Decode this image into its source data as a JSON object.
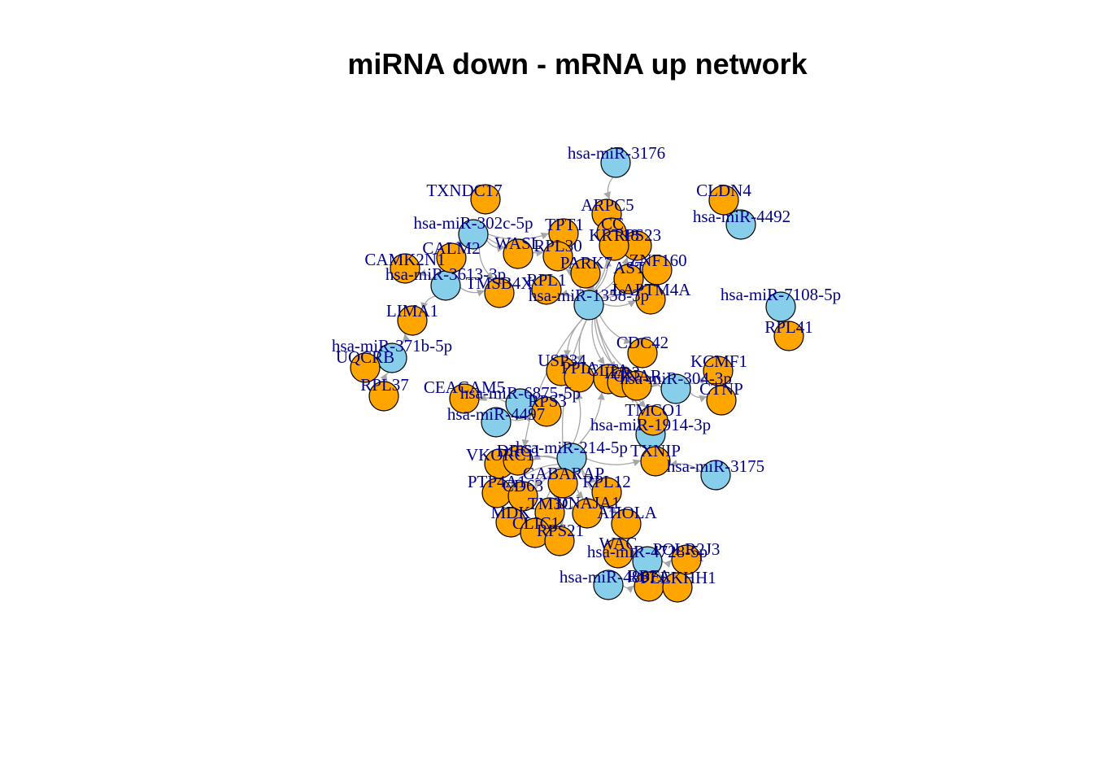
{
  "title": "miRNA down - mRNA up network",
  "colors": {
    "mirna_fill": "#87CEEB",
    "mrna_fill": "#FFA500",
    "node_stroke": "#000000",
    "edge": "#A6A6A6",
    "label": "#00008B"
  },
  "nodes": [
    {
      "id": "m3176",
      "label": "hsa-miR-3176",
      "type": "miRNA"
    },
    {
      "id": "m4492",
      "label": "hsa-miR-4492",
      "type": "miRNA"
    },
    {
      "id": "m302c",
      "label": "hsa-miR-302c-5p",
      "type": "miRNA"
    },
    {
      "id": "m3613",
      "label": "hsa-miR-3613-3p",
      "type": "miRNA"
    },
    {
      "id": "m1358",
      "label": "hsa-miR-1358-3p",
      "type": "miRNA"
    },
    {
      "id": "m7108",
      "label": "hsa-miR-7108-5p",
      "type": "miRNA"
    },
    {
      "id": "m371b",
      "label": "hsa-miR-371b-5p",
      "type": "miRNA"
    },
    {
      "id": "m304",
      "label": "hsa-miR-304-3p",
      "type": "miRNA"
    },
    {
      "id": "mB1",
      "label": "hsa-miR-6875-5p",
      "type": "miRNA"
    },
    {
      "id": "mB2",
      "label": "hsa-miR-4497",
      "type": "miRNA"
    },
    {
      "id": "m1914",
      "label": "hsa-miR-1914-3p",
      "type": "miRNA"
    },
    {
      "id": "m214",
      "label": "hsa-miR-214-5p",
      "type": "miRNA"
    },
    {
      "id": "m3175",
      "label": "hsa-miR-3175",
      "type": "miRNA"
    },
    {
      "id": "m4728",
      "label": "hsa-miR-4728-5p",
      "type": "miRNA"
    },
    {
      "id": "mBot",
      "label": "hsa-miR-4867",
      "type": "miRNA"
    },
    {
      "id": "g1",
      "label": "TXNDC17",
      "type": "mRNA"
    },
    {
      "id": "g2",
      "label": "CLDN4",
      "type": "mRNA"
    },
    {
      "id": "g3",
      "label": "ARPC5",
      "type": "mRNA"
    },
    {
      "id": "g4",
      "label": "TPT1",
      "type": "mRNA"
    },
    {
      "id": "g5",
      "label": "CC",
      "type": "mRNA"
    },
    {
      "id": "g6",
      "label": "RPS23",
      "type": "mRNA"
    },
    {
      "id": "g7",
      "label": "KRT18",
      "type": "mRNA"
    },
    {
      "id": "g8",
      "label": "CALM2",
      "type": "mRNA"
    },
    {
      "id": "g9",
      "label": "WASL",
      "type": "mRNA"
    },
    {
      "id": "g10",
      "label": "RPL30",
      "type": "mRNA"
    },
    {
      "id": "g11",
      "label": "CAMK2N1",
      "type": "mRNA"
    },
    {
      "id": "g12",
      "label": "PARK7",
      "type": "mRNA"
    },
    {
      "id": "g13",
      "label": "ZNF160",
      "type": "mRNA"
    },
    {
      "id": "g14",
      "label": "AST",
      "type": "mRNA"
    },
    {
      "id": "g15",
      "label": "TMSB4X",
      "type": "mRNA"
    },
    {
      "id": "g16",
      "label": "RPL1",
      "type": "mRNA"
    },
    {
      "id": "g17",
      "label": "LAPTM4A",
      "type": "mRNA"
    },
    {
      "id": "g18",
      "label": "LIMA1",
      "type": "mRNA"
    },
    {
      "id": "g19",
      "label": "RPL41",
      "type": "mRNA"
    },
    {
      "id": "g20",
      "label": "UQCRB",
      "type": "mRNA"
    },
    {
      "id": "g21",
      "label": "RPL37",
      "type": "mRNA"
    },
    {
      "id": "g22",
      "label": "CDC42",
      "type": "mRNA"
    },
    {
      "id": "g23",
      "label": "KCMF1",
      "type": "mRNA"
    },
    {
      "id": "g24",
      "label": "CTNP",
      "type": "mRNA"
    },
    {
      "id": "g25",
      "label": "USP34",
      "type": "mRNA"
    },
    {
      "id": "g26",
      "label": "PPIA",
      "type": "mRNA"
    },
    {
      "id": "g27",
      "label": "CLTA",
      "type": "mRNA"
    },
    {
      "id": "g28",
      "label": "IER3",
      "type": "mRNA"
    },
    {
      "id": "g29",
      "label": "GNAR",
      "type": "mRNA"
    },
    {
      "id": "g30",
      "label": "CEACAM5",
      "type": "mRNA"
    },
    {
      "id": "g31",
      "label": "TMCO1",
      "type": "mRNA"
    },
    {
      "id": "g32",
      "label": "RPS3",
      "type": "mRNA"
    },
    {
      "id": "g33",
      "label": "TXNIP",
      "type": "mRNA"
    },
    {
      "id": "g34",
      "label": "VKORC1",
      "type": "mRNA"
    },
    {
      "id": "g35",
      "label": "DRG1",
      "type": "mRNA"
    },
    {
      "id": "g36",
      "label": "GABARAP",
      "type": "mRNA"
    },
    {
      "id": "g37",
      "label": "PTP4A1",
      "type": "mRNA"
    },
    {
      "id": "g38",
      "label": "CD63",
      "type": "mRNA"
    },
    {
      "id": "g39",
      "label": "RPL12",
      "type": "mRNA"
    },
    {
      "id": "g40",
      "label": "TM3C",
      "type": "mRNA"
    },
    {
      "id": "g41",
      "label": "MDK",
      "type": "mRNA"
    },
    {
      "id": "g42",
      "label": "DNAJA1",
      "type": "mRNA"
    },
    {
      "id": "g43",
      "label": "CLIC1",
      "type": "mRNA"
    },
    {
      "id": "g44",
      "label": "RPS21",
      "type": "mRNA"
    },
    {
      "id": "g45",
      "label": "AHOLA",
      "type": "mRNA"
    },
    {
      "id": "g46",
      "label": "WAC",
      "type": "mRNA"
    },
    {
      "id": "g47",
      "label": "POLR2J3",
      "type": "mRNA"
    },
    {
      "id": "g48",
      "label": "RBFA",
      "type": "mRNA"
    },
    {
      "id": "g49",
      "label": "PLEKHH1",
      "type": "mRNA"
    }
  ],
  "edges": [
    [
      "m3176",
      "g3"
    ],
    [
      "m302c",
      "g4"
    ],
    [
      "m302c",
      "g8"
    ],
    [
      "m302c",
      "g9"
    ],
    [
      "m302c",
      "g10"
    ],
    [
      "m302c",
      "g15"
    ],
    [
      "m3613",
      "g11"
    ],
    [
      "m3613",
      "g18"
    ],
    [
      "m3613",
      "g15"
    ],
    [
      "m1358",
      "g5"
    ],
    [
      "m1358",
      "g6"
    ],
    [
      "m1358",
      "g7"
    ],
    [
      "m1358",
      "g12"
    ],
    [
      "m1358",
      "g13"
    ],
    [
      "m1358",
      "g14"
    ],
    [
      "m1358",
      "g16"
    ],
    [
      "m1358",
      "g17"
    ],
    [
      "m1358",
      "g10"
    ],
    [
      "m1358",
      "g22"
    ],
    [
      "m1358",
      "g25"
    ],
    [
      "m1358",
      "g26"
    ],
    [
      "m1358",
      "g27"
    ],
    [
      "m1358",
      "g28"
    ],
    [
      "m1358",
      "g29"
    ],
    [
      "m1358",
      "g31"
    ],
    [
      "m1358",
      "g35"
    ],
    [
      "m1358",
      "g36"
    ],
    [
      "m371b",
      "g20"
    ],
    [
      "m371b",
      "g21"
    ],
    [
      "m371b",
      "g18"
    ],
    [
      "m4492",
      "g2"
    ],
    [
      "m7108",
      "g19"
    ],
    [
      "m304",
      "g23"
    ],
    [
      "m304",
      "g24"
    ],
    [
      "m304",
      "g29"
    ],
    [
      "mB1",
      "g30"
    ],
    [
      "mB1",
      "g32"
    ],
    [
      "mB2",
      "g32"
    ],
    [
      "m1914",
      "g31"
    ],
    [
      "m1914",
      "g33"
    ],
    [
      "m1914",
      "g28"
    ],
    [
      "m214",
      "g34"
    ],
    [
      "m214",
      "g35"
    ],
    [
      "m214",
      "g36"
    ],
    [
      "m214",
      "g37"
    ],
    [
      "m214",
      "g38"
    ],
    [
      "m214",
      "g39"
    ],
    [
      "m214",
      "g40"
    ],
    [
      "m214",
      "g41"
    ],
    [
      "m214",
      "g42"
    ],
    [
      "m214",
      "g43"
    ],
    [
      "m214",
      "g44"
    ],
    [
      "m214",
      "g45"
    ],
    [
      "m214",
      "g33"
    ],
    [
      "m214",
      "g26"
    ],
    [
      "m214",
      "g27"
    ],
    [
      "m3175",
      "g33"
    ],
    [
      "m4728",
      "g46"
    ],
    [
      "m4728",
      "g47"
    ],
    [
      "m4728",
      "g48"
    ],
    [
      "m4728",
      "g49"
    ],
    [
      "mBot",
      "g48"
    ]
  ]
}
